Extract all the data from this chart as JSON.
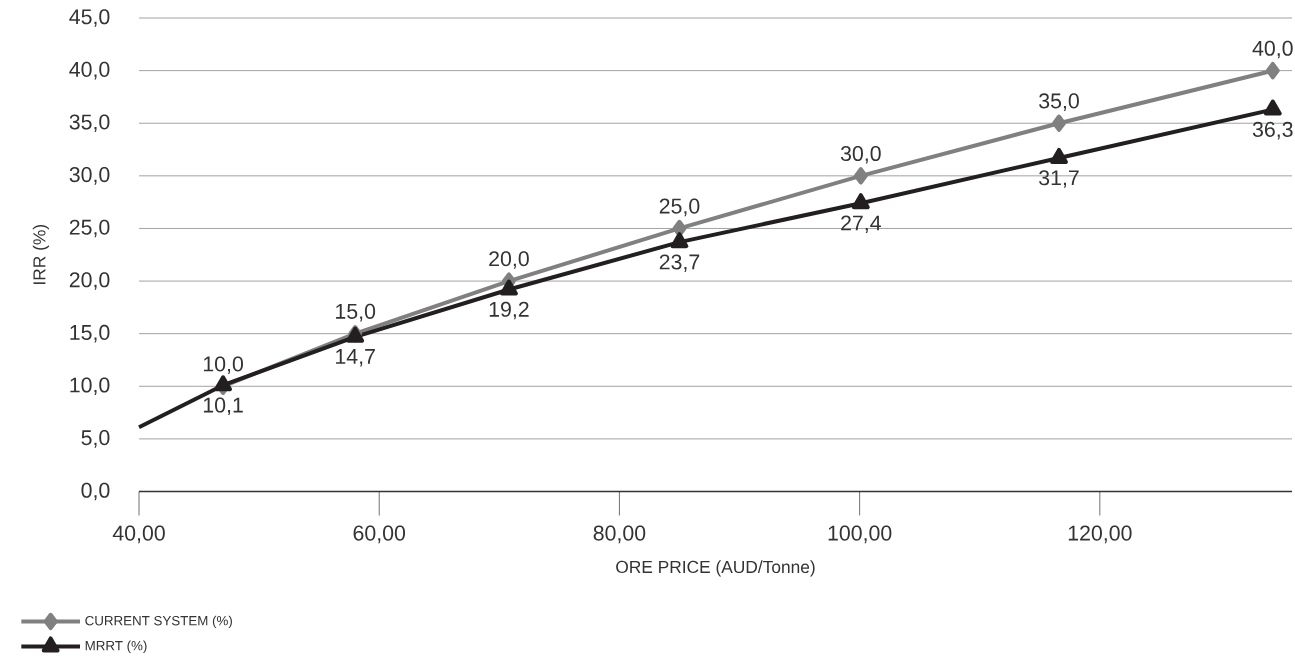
{
  "chart_data": {
    "type": "line",
    "xlabel": "ORE PRICE (AUD/Tonne)",
    "ylabel": "IRR (%)",
    "xlim": [
      40,
      136
    ],
    "ylim": [
      0,
      45
    ],
    "xticks": [
      {
        "value": 40,
        "label": "40,00"
      },
      {
        "value": 60,
        "label": "60,00"
      },
      {
        "value": 80,
        "label": "80,00"
      },
      {
        "value": 100,
        "label": "100,00"
      },
      {
        "value": 120,
        "label": "120,00"
      }
    ],
    "yticks": [
      {
        "value": 0,
        "label": "0,0"
      },
      {
        "value": 5,
        "label": "5,0"
      },
      {
        "value": 10,
        "label": "10,0"
      },
      {
        "value": 15,
        "label": "15,0"
      },
      {
        "value": 20,
        "label": "20,0"
      },
      {
        "value": 25,
        "label": "25,0"
      },
      {
        "value": 30,
        "label": "30,0"
      },
      {
        "value": 35,
        "label": "35,0"
      },
      {
        "value": 40,
        "label": "40,0"
      },
      {
        "value": 45,
        "label": "45,0"
      }
    ],
    "grid": "y",
    "legend": "bottom left",
    "line_style": "solid",
    "series": [
      {
        "name": "CURRENT SYSTEM (%)",
        "color": "#808080",
        "marker": "diamond",
        "x": [
          47.0,
          58.0,
          70.8,
          85.0,
          100.1,
          116.6,
          134.4
        ],
        "values": [
          10,
          15,
          20,
          25,
          30,
          35,
          40
        ],
        "value_labels": [
          "10,0",
          "15,0",
          "20,0",
          "25,0",
          "30,0",
          "35,0",
          "40,0"
        ]
      },
      {
        "name": "MRRT (%)",
        "color": "#231f20",
        "marker": "triangle",
        "x": [
          47.0,
          58.0,
          70.8,
          85.0,
          100.1,
          116.6,
          134.4
        ],
        "values": [
          10.1,
          14.7,
          19.2,
          23.7,
          27.4,
          31.7,
          36.3
        ],
        "value_labels": [
          "10,1",
          "14,7",
          "19,2",
          "23,7",
          "27,4",
          "31,7",
          "36,3"
        ]
      },
      {
        "color": "#231f20",
        "marker": "none",
        "x": [
          40,
          47.0
        ],
        "values": [
          6.1,
          10.1
        ]
      }
    ]
  }
}
